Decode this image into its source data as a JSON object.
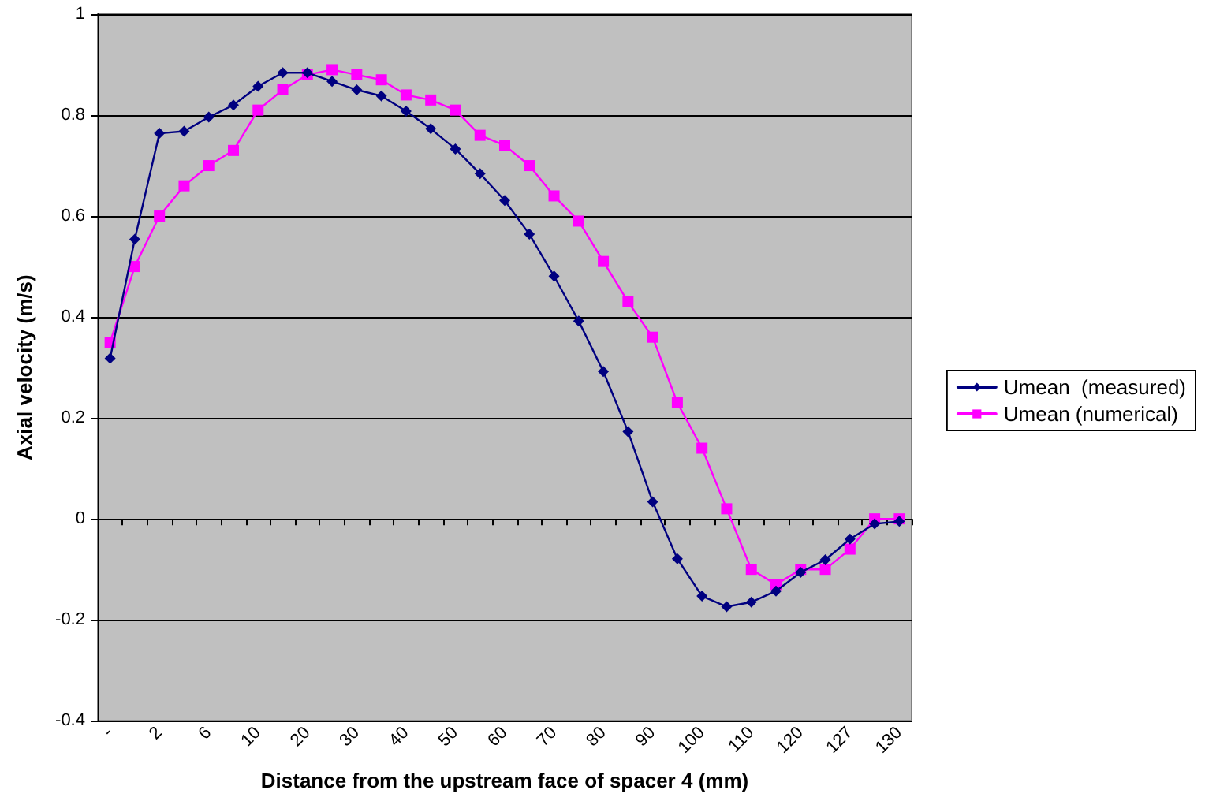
{
  "chart_data": {
    "type": "line",
    "xlabel": "Distance from the upstream face of spacer 4 (mm)",
    "ylabel": "Axial velocity (m/s)",
    "categories": [
      "-",
      null,
      "2",
      null,
      "6",
      null,
      "10",
      null,
      "20",
      null,
      "30",
      null,
      "40",
      null,
      "50",
      null,
      "60",
      null,
      "70",
      null,
      "80",
      null,
      "90",
      null,
      "100",
      null,
      "110",
      null,
      "120",
      null,
      "127",
      null,
      "130"
    ],
    "series": [
      {
        "name": "Umean  (measured)",
        "color": "#000080",
        "marker": "diamond",
        "values": [
          0.318,
          0.554,
          0.764,
          0.768,
          0.796,
          0.82,
          0.857,
          0.884,
          0.884,
          0.867,
          0.85,
          0.838,
          0.808,
          0.773,
          0.733,
          0.684,
          0.631,
          0.564,
          0.481,
          0.392,
          0.292,
          0.173,
          0.034,
          -0.079,
          -0.153,
          -0.174,
          -0.165,
          -0.143,
          -0.106,
          -0.081,
          -0.04,
          -0.01,
          -0.005
        ]
      },
      {
        "name": "Umean (numerical)",
        "color": "#ff00ff",
        "marker": "square",
        "values": [
          0.35,
          0.5,
          0.6,
          0.66,
          0.7,
          0.73,
          0.81,
          0.85,
          0.88,
          0.89,
          0.88,
          0.87,
          0.84,
          0.83,
          0.81,
          0.76,
          0.74,
          0.7,
          0.64,
          0.59,
          0.51,
          0.43,
          0.36,
          0.23,
          0.14,
          0.02,
          -0.1,
          -0.13,
          -0.1,
          -0.1,
          -0.06,
          0,
          0
        ]
      }
    ],
    "ylim": [
      -0.4,
      1
    ],
    "yticks": [
      -0.4,
      -0.2,
      0,
      0.2,
      0.4,
      0.6,
      0.8,
      1
    ],
    "grid": "y",
    "legend": "right",
    "line_style": "solid"
  }
}
